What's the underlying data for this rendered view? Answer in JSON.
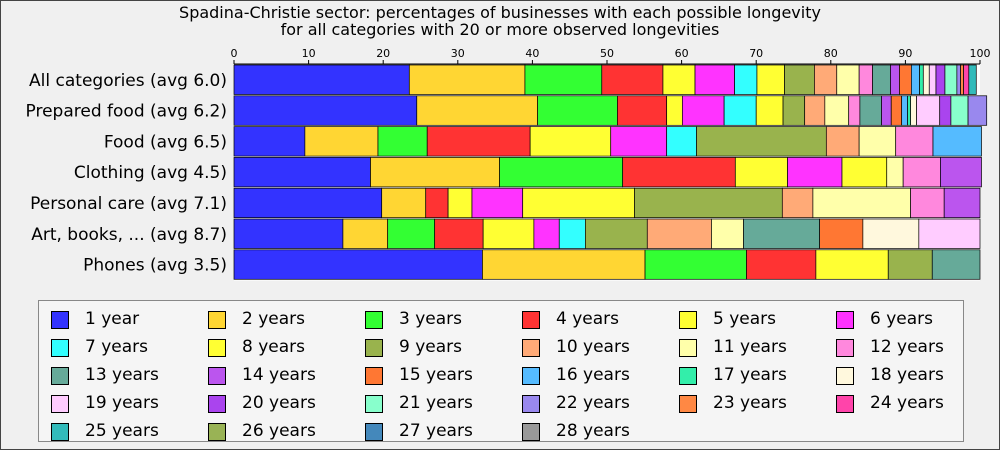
{
  "chart_data": {
    "type": "bar",
    "orientation": "horizontal-stacked-percent",
    "title": "Spadina-Christie sector: percentages of businesses with each possible longevity",
    "subtitle": "for all categories with 20 or more observed longevities",
    "xlim": [
      0,
      100
    ],
    "x_ticks": [
      0,
      10,
      20,
      30,
      40,
      50,
      60,
      70,
      80,
      90,
      100
    ],
    "x_axis_position": "top",
    "grid": false,
    "legend_position": "bottom",
    "categories": [
      "All categories (avg 6.0)",
      "Prepared food (avg 6.2)",
      "Food (avg 6.5)",
      "Clothing (avg 4.5)",
      "Personal care (avg 7.1)",
      "Art, books, ... (avg 8.7)",
      "Phones (avg 3.5)"
    ],
    "legend": [
      {
        "label": "1 year",
        "color": "#3333ff"
      },
      {
        "label": "2 years",
        "color": "#ffd633"
      },
      {
        "label": "3 years",
        "color": "#33ff33"
      },
      {
        "label": "4 years",
        "color": "#ff3333"
      },
      {
        "label": "5 years",
        "color": "#ffff33"
      },
      {
        "label": "6 years",
        "color": "#ff33ff"
      },
      {
        "label": "7 years",
        "color": "#33ffff"
      },
      {
        "label": "8 years",
        "color": "#ffff33"
      },
      {
        "label": "9 years",
        "color": "#99b34d"
      },
      {
        "label": "10 years",
        "color": "#ffaa77"
      },
      {
        "label": "11 years",
        "color": "#ffffaa"
      },
      {
        "label": "12 years",
        "color": "#ff88dd"
      },
      {
        "label": "13 years",
        "color": "#66aa99"
      },
      {
        "label": "14 years",
        "color": "#bb55ee"
      },
      {
        "label": "15 years",
        "color": "#ff7733"
      },
      {
        "label": "16 years",
        "color": "#55bbff"
      },
      {
        "label": "17 years",
        "color": "#33eeaa"
      },
      {
        "label": "18 years",
        "color": "#fff8dd"
      },
      {
        "label": "19 years",
        "color": "#ffccff"
      },
      {
        "label": "20 years",
        "color": "#aa44ee"
      },
      {
        "label": "21 years",
        "color": "#88ffcc"
      },
      {
        "label": "22 years",
        "color": "#9988ee"
      },
      {
        "label": "23 years",
        "color": "#ff8844"
      },
      {
        "label": "24 years",
        "color": "#ff44aa"
      },
      {
        "label": "25 years",
        "color": "#33bbbb"
      },
      {
        "label": "26 years",
        "color": "#99b355"
      },
      {
        "label": "27 years",
        "color": "#4488bb"
      },
      {
        "label": "28 years",
        "color": "#999999"
      }
    ],
    "bars": [
      {
        "category": "All categories (avg 6.0)",
        "segments": [
          {
            "longevity": 1,
            "value": 23.5
          },
          {
            "longevity": 2,
            "value": 15.5
          },
          {
            "longevity": 3,
            "value": 10.3
          },
          {
            "longevity": 4,
            "value": 8.2
          },
          {
            "longevity": 5,
            "value": 4.3
          },
          {
            "longevity": 6,
            "value": 5.3
          },
          {
            "longevity": 7,
            "value": 3.0
          },
          {
            "longevity": 8,
            "value": 3.7
          },
          {
            "longevity": 9,
            "value": 4.0
          },
          {
            "longevity": 10,
            "value": 3.0
          },
          {
            "longevity": 11,
            "value": 3.0
          },
          {
            "longevity": 12,
            "value": 1.8
          },
          {
            "longevity": 13,
            "value": 2.4
          },
          {
            "longevity": 14,
            "value": 1.2
          },
          {
            "longevity": 15,
            "value": 1.6
          },
          {
            "longevity": 16,
            "value": 1.1
          },
          {
            "longevity": 17,
            "value": 0.5
          },
          {
            "longevity": 18,
            "value": 0.8
          },
          {
            "longevity": 19,
            "value": 0.9
          },
          {
            "longevity": 20,
            "value": 1.2
          },
          {
            "longevity": 21,
            "value": 1.6
          },
          {
            "longevity": 22,
            "value": 0.5
          },
          {
            "longevity": 23,
            "value": 0.4
          },
          {
            "longevity": 24,
            "value": 0.7
          },
          {
            "longevity": 25,
            "value": 1.0
          }
        ]
      },
      {
        "category": "Prepared food (avg 6.2)",
        "segments": [
          {
            "longevity": 1,
            "value": 24.5
          },
          {
            "longevity": 2,
            "value": 16.2
          },
          {
            "longevity": 3,
            "value": 10.7
          },
          {
            "longevity": 4,
            "value": 6.6
          },
          {
            "longevity": 5,
            "value": 2.1
          },
          {
            "longevity": 6,
            "value": 5.6
          },
          {
            "longevity": 7,
            "value": 4.3
          },
          {
            "longevity": 8,
            "value": 3.6
          },
          {
            "longevity": 9,
            "value": 2.9
          },
          {
            "longevity": 10,
            "value": 2.7
          },
          {
            "longevity": 11,
            "value": 3.2
          },
          {
            "longevity": 12,
            "value": 1.5
          },
          {
            "longevity": 13,
            "value": 2.9
          },
          {
            "longevity": 14,
            "value": 1.3
          },
          {
            "longevity": 15,
            "value": 1.4
          },
          {
            "longevity": 16,
            "value": 0.8
          },
          {
            "longevity": 17,
            "value": 0.4
          },
          {
            "longevity": 18,
            "value": 0.8
          },
          {
            "longevity": 19,
            "value": 3.1
          },
          {
            "longevity": 20,
            "value": 1.5
          },
          {
            "longevity": 21,
            "value": 2.3
          },
          {
            "longevity": 22,
            "value": 2.5
          }
        ]
      },
      {
        "category": "Food (avg 6.5)",
        "segments": [
          {
            "longevity": 1,
            "value": 9.5
          },
          {
            "longevity": 2,
            "value": 9.8
          },
          {
            "longevity": 3,
            "value": 6.6
          },
          {
            "longevity": 4,
            "value": 13.8
          },
          {
            "longevity": 5,
            "value": 10.8
          },
          {
            "longevity": 6,
            "value": 7.5
          },
          {
            "longevity": 7,
            "value": 4.0
          },
          {
            "longevity": 9,
            "value": 17.4
          },
          {
            "longevity": 10,
            "value": 4.4
          },
          {
            "longevity": 11,
            "value": 4.9
          },
          {
            "longevity": 12,
            "value": 5.0
          },
          {
            "longevity": 16,
            "value": 6.5
          }
        ]
      },
      {
        "category": "Clothing (avg 4.5)",
        "segments": [
          {
            "longevity": 1,
            "value": 18.3
          },
          {
            "longevity": 2,
            "value": 17.3
          },
          {
            "longevity": 3,
            "value": 16.5
          },
          {
            "longevity": 4,
            "value": 15.1
          },
          {
            "longevity": 5,
            "value": 7.0
          },
          {
            "longevity": 6,
            "value": 7.3
          },
          {
            "longevity": 8,
            "value": 6.0
          },
          {
            "longevity": 11,
            "value": 2.2
          },
          {
            "longevity": 12,
            "value": 5.0
          },
          {
            "longevity": 14,
            "value": 5.5
          }
        ]
      },
      {
        "category": "Personal care (avg 7.1)",
        "segments": [
          {
            "longevity": 1,
            "value": 19.8
          },
          {
            "longevity": 2,
            "value": 5.9
          },
          {
            "longevity": 4,
            "value": 3.0
          },
          {
            "longevity": 5,
            "value": 3.2
          },
          {
            "longevity": 6,
            "value": 6.8
          },
          {
            "longevity": 8,
            "value": 15.0
          },
          {
            "longevity": 9,
            "value": 19.8
          },
          {
            "longevity": 10,
            "value": 4.1
          },
          {
            "longevity": 11,
            "value": 13.1
          },
          {
            "longevity": 12,
            "value": 4.5
          },
          {
            "longevity": 14,
            "value": 4.8
          }
        ]
      },
      {
        "category": "Art, books, ... (avg 8.7)",
        "segments": [
          {
            "longevity": 1,
            "value": 14.6
          },
          {
            "longevity": 2,
            "value": 6.0
          },
          {
            "longevity": 3,
            "value": 6.3
          },
          {
            "longevity": 4,
            "value": 6.5
          },
          {
            "longevity": 5,
            "value": 6.8
          },
          {
            "longevity": 6,
            "value": 3.4
          },
          {
            "longevity": 7,
            "value": 3.5
          },
          {
            "longevity": 9,
            "value": 8.3
          },
          {
            "longevity": 10,
            "value": 8.6
          },
          {
            "longevity": 11,
            "value": 4.3
          },
          {
            "longevity": 13,
            "value": 10.2
          },
          {
            "longevity": 15,
            "value": 5.8
          },
          {
            "longevity": 18,
            "value": 7.5
          },
          {
            "longevity": 19,
            "value": 8.2
          }
        ]
      },
      {
        "category": "Phones (avg 3.5)",
        "segments": [
          {
            "longevity": 1,
            "value": 33.3
          },
          {
            "longevity": 2,
            "value": 21.8
          },
          {
            "longevity": 3,
            "value": 13.6
          },
          {
            "longevity": 4,
            "value": 9.3
          },
          {
            "longevity": 5,
            "value": 9.7
          },
          {
            "longevity": 9,
            "value": 5.9
          },
          {
            "longevity": 13,
            "value": 6.4
          }
        ]
      }
    ]
  }
}
